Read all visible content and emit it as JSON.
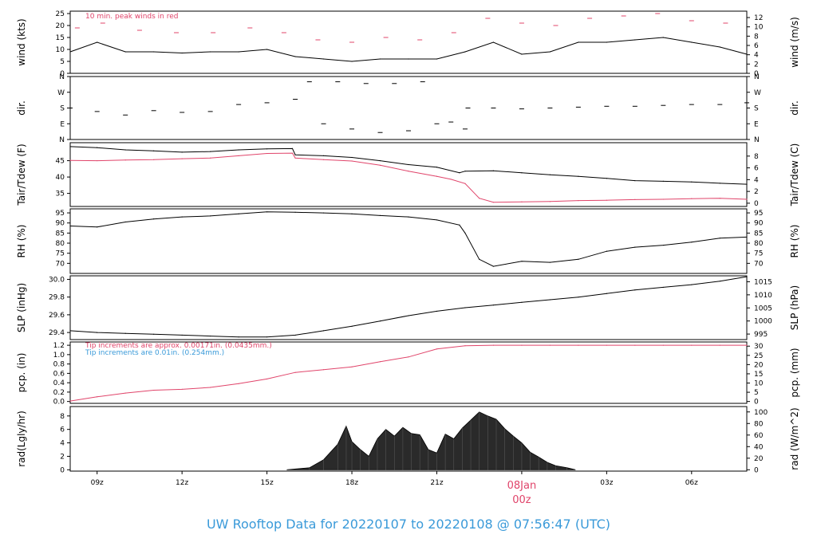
{
  "title": "UW Rooftop Data for 20220107  to  20220108 @ 07:56:47  (UTC)",
  "colors": {
    "accent_red": "#e0446a",
    "accent_blue": "#3a9ad9",
    "ink": "#000000",
    "rad_fill": "#2a2a2a"
  },
  "time_axis": {
    "ticks": [
      {
        "t": 9,
        "label": "09z"
      },
      {
        "t": 12,
        "label": "12z"
      },
      {
        "t": 15,
        "label": "15z"
      },
      {
        "t": 18,
        "label": "18z"
      },
      {
        "t": 21,
        "label": "21z"
      },
      {
        "t": 24,
        "label": "08Jan",
        "label2": "00z",
        "highlight": true
      },
      {
        "t": 27,
        "label": "03z"
      },
      {
        "t": 30,
        "label": "06z"
      }
    ],
    "xlim": [
      8.05,
      31.95
    ]
  },
  "chart_data": [
    {
      "type": "line",
      "id": "wind",
      "ylabel": "wind (kts)",
      "ylabel_right": "wind (m/s)",
      "ylim": [
        0,
        26
      ],
      "yticks": [
        0,
        5,
        10,
        15,
        20,
        25
      ],
      "right_scale": 0.514444,
      "right_ticks": [
        0,
        2,
        4,
        6,
        8,
        10,
        12
      ],
      "annotation": "10 min. peak winds in red",
      "series": [
        {
          "kind": "line",
          "color": "#000000",
          "x": [
            8.05,
            9,
            10,
            11,
            12,
            13,
            14,
            15,
            16,
            17,
            18,
            19,
            20,
            21,
            22,
            23,
            24,
            25,
            26,
            27,
            28,
            29,
            30,
            31,
            31.95
          ],
          "y": [
            9,
            13,
            9,
            9,
            8.5,
            9,
            9,
            10,
            7,
            6,
            5,
            6,
            6,
            6,
            9,
            13,
            8,
            9,
            13,
            13,
            14,
            15,
            13,
            11,
            8
          ]
        },
        {
          "kind": "ticks",
          "color": "#e0446a",
          "x": [
            8.3,
            9.2,
            10.5,
            11.8,
            13.1,
            14.4,
            15.6,
            16.8,
            18.0,
            19.2,
            20.4,
            21.6,
            22.8,
            24.0,
            25.2,
            26.4,
            27.6,
            28.8,
            30.0,
            31.2
          ],
          "y": [
            19,
            21,
            18,
            17,
            17,
            19,
            17,
            14,
            13,
            15,
            14,
            17,
            23,
            21,
            20,
            23,
            24,
            25,
            22,
            21
          ]
        }
      ]
    },
    {
      "type": "scatter",
      "id": "dir",
      "ylabel": "dir.",
      "ylabel_right": "dir.",
      "ylim": [
        0,
        360
      ],
      "ytick_values": [
        0,
        90,
        180,
        270,
        360
      ],
      "ytick_labels": [
        "N",
        "E",
        "S",
        "W",
        "N"
      ],
      "series": [
        {
          "kind": "dashes",
          "color": "#000000",
          "x": [
            8.05,
            9,
            10,
            11,
            12,
            13,
            14,
            15,
            16,
            16.5,
            17,
            17.5,
            18,
            18.5,
            19,
            19.5,
            20,
            20.5,
            21,
            21.5,
            22,
            22.1,
            23,
            24,
            25,
            26,
            27,
            28,
            29,
            30,
            31,
            31.95
          ],
          "y": [
            180,
            160,
            140,
            165,
            155,
            160,
            200,
            210,
            230,
            330,
            90,
            330,
            60,
            320,
            40,
            320,
            50,
            330,
            90,
            100,
            60,
            180,
            180,
            175,
            180,
            185,
            190,
            190,
            195,
            200,
            200,
            210
          ]
        }
      ]
    },
    {
      "type": "line",
      "id": "temp",
      "ylabel": "Tair/Tdew (F)",
      "ylabel_right": "Tair/Tdew (C)",
      "ylim": [
        31,
        50.5
      ],
      "yticks": [
        35,
        40,
        45
      ],
      "right_ticks": [
        0,
        2,
        4,
        6,
        8
      ],
      "series": [
        {
          "kind": "line",
          "color": "#000000",
          "x": [
            8.05,
            9,
            10,
            11,
            12,
            13,
            14,
            15,
            15.9,
            16,
            17,
            18,
            19,
            20,
            21,
            21.8,
            22,
            23,
            24,
            25,
            26,
            27,
            28,
            29,
            30,
            31,
            31.95
          ],
          "y": [
            49.3,
            49,
            48.3,
            48.0,
            47.6,
            47.8,
            48.3,
            48.6,
            48.7,
            46.8,
            46.5,
            46.0,
            45.0,
            43.8,
            43.0,
            41.3,
            41.8,
            41.9,
            41.3,
            40.7,
            40.2,
            39.6,
            38.9,
            38.7,
            38.5,
            38.1,
            37.8
          ]
        },
        {
          "kind": "line",
          "color": "#e0446a",
          "x": [
            8.05,
            9,
            10,
            11,
            12,
            13,
            14,
            15,
            15.9,
            16,
            17,
            18,
            19,
            20,
            21,
            21.5,
            22,
            22.5,
            23,
            24,
            25,
            26,
            27,
            28,
            29,
            30,
            31,
            31.95
          ],
          "y": [
            45.1,
            45.0,
            45.2,
            45.3,
            45.6,
            45.8,
            46.5,
            47.2,
            47.3,
            45.8,
            45.3,
            44.9,
            43.6,
            41.8,
            40.2,
            39.3,
            38.0,
            33.5,
            32.3,
            32.4,
            32.5,
            32.8,
            32.9,
            33.1,
            33.2,
            33.4,
            33.5,
            33.2
          ]
        }
      ]
    },
    {
      "type": "line",
      "id": "rh",
      "ylabel": "RH (%)",
      "ylabel_right": "RH (%)",
      "ylim": [
        65,
        97
      ],
      "yticks": [
        70,
        75,
        80,
        85,
        90,
        95
      ],
      "series": [
        {
          "kind": "line",
          "color": "#000000",
          "x": [
            8.05,
            9,
            10,
            11,
            12,
            13,
            14,
            15,
            16,
            17,
            18,
            19,
            20,
            21,
            21.8,
            22,
            22.5,
            23,
            24,
            25,
            26,
            27,
            28,
            29,
            30,
            31,
            31.95
          ],
          "y": [
            88.5,
            88,
            90.5,
            92,
            93,
            93.5,
            94.5,
            95.5,
            95.3,
            95,
            94.5,
            93.7,
            93,
            91.5,
            89,
            85,
            72,
            68.5,
            71,
            70.5,
            72,
            76,
            78,
            79,
            80.5,
            82.5,
            83
          ]
        }
      ]
    },
    {
      "type": "line",
      "id": "slp",
      "ylabel": "SLP (inHg)",
      "ylabel_right": "SLP (hPa)",
      "ylim": [
        29.32,
        30.04
      ],
      "yticks": [
        29.4,
        29.6,
        29.8,
        30.0
      ],
      "yticklabels": [
        "29.4",
        "29.6",
        "29.8",
        "30.0"
      ],
      "right_ticks": [
        995,
        1000,
        1005,
        1010,
        1015
      ],
      "series": [
        {
          "kind": "line",
          "color": "#000000",
          "x": [
            8.05,
            9,
            10,
            11,
            12,
            13,
            14,
            15,
            16,
            17,
            18,
            19,
            20,
            21,
            22,
            23,
            24,
            25,
            26,
            27,
            28,
            29,
            30,
            31,
            31.95
          ],
          "y": [
            29.42,
            29.4,
            29.39,
            29.38,
            29.37,
            29.36,
            29.35,
            29.35,
            29.37,
            29.42,
            29.47,
            29.53,
            29.59,
            29.64,
            29.68,
            29.71,
            29.74,
            29.77,
            29.8,
            29.84,
            29.88,
            29.91,
            29.94,
            29.98,
            30.03
          ]
        }
      ]
    },
    {
      "type": "area",
      "id": "pcp",
      "ylabel": "pcp. (in)",
      "ylabel_right": "pcp. (mm)",
      "ylim": [
        -0.04,
        1.27
      ],
      "yticks": [
        0.0,
        0.2,
        0.4,
        0.6,
        0.8,
        1.0,
        1.2
      ],
      "yticklabels": [
        "0.0",
        "0.2",
        "0.4",
        "0.6",
        "0.8",
        "1.0",
        "1.2"
      ],
      "right_ticks": [
        0,
        5,
        10,
        15,
        20,
        25,
        30
      ],
      "annotations": [
        {
          "text": "Tip increments are approx. 0.00171in. (0.0435mm.)",
          "color": "#e0446a"
        },
        {
          "text": "Tip increments are 0.01in. (0.254mm.)",
          "color": "#3a9ad9"
        }
      ],
      "series": [
        {
          "kind": "line",
          "color": "#e0446a",
          "x": [
            8.05,
            9,
            10,
            11,
            12,
            13,
            14,
            15,
            16,
            17,
            18,
            19,
            20,
            21,
            22,
            23,
            24,
            25,
            26,
            27,
            28,
            29,
            30,
            31,
            31.95
          ],
          "y": [
            0.01,
            0.1,
            0.18,
            0.24,
            0.26,
            0.3,
            0.38,
            0.48,
            0.62,
            0.68,
            0.74,
            0.85,
            0.95,
            1.12,
            1.19,
            1.2,
            1.2,
            1.2,
            1.2,
            1.2,
            1.2,
            1.2,
            1.2,
            1.2,
            1.2
          ]
        }
      ]
    },
    {
      "type": "area",
      "id": "rad",
      "ylabel": "rad(Lgly/hr)",
      "ylabel_right": "rad (W/m^2)",
      "ylim": [
        -0.2,
        9.4
      ],
      "yticks": [
        0,
        2,
        4,
        6,
        8
      ],
      "right_ticks": [
        0,
        20,
        40,
        60,
        80,
        100
      ],
      "series": [
        {
          "kind": "fill",
          "color": "#2a2a2a",
          "x": [
            15.7,
            16.5,
            17,
            17.5,
            17.8,
            18,
            18.3,
            18.6,
            18.9,
            19.2,
            19.5,
            19.8,
            20.1,
            20.4,
            20.7,
            21,
            21.3,
            21.6,
            21.9,
            22.2,
            22.5,
            22.8,
            23.1,
            23.4,
            23.7,
            24,
            24.3,
            24.6,
            24.9,
            25.2,
            25.6,
            25.9
          ],
          "y": [
            0,
            0.3,
            1.5,
            3.8,
            6.5,
            4.2,
            3.0,
            2.0,
            4.6,
            6.0,
            5.0,
            6.3,
            5.4,
            5.2,
            3.0,
            2.5,
            5.3,
            4.6,
            6.2,
            7.4,
            8.6,
            8.0,
            7.5,
            6.1,
            5.0,
            4.0,
            2.6,
            1.9,
            1.1,
            0.6,
            0.3,
            0
          ]
        }
      ]
    }
  ]
}
